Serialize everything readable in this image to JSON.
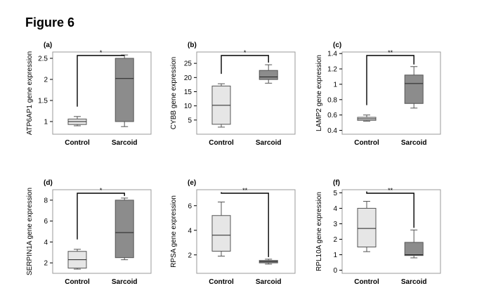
{
  "figure_title": "Figure 6",
  "colors": {
    "control_box": "#e6e6e6",
    "sarcoid_box": "#8c8c8c",
    "frame": "#999999"
  },
  "chart_data": [
    {
      "type": "box",
      "panel_label": "(a)",
      "ylabel": "ATP6AP1 gene expression",
      "categories": [
        "Control",
        "Sarcoid"
      ],
      "ylim": [
        0.7,
        2.65
      ],
      "yticks": [
        1.0,
        1.5,
        2.0,
        2.5
      ],
      "boxes": [
        {
          "min": 0.9,
          "q1": 0.93,
          "median": 1.0,
          "q3": 1.06,
          "max": 1.12
        },
        {
          "min": 0.88,
          "q1": 1.0,
          "median": 2.02,
          "q3": 2.5,
          "max": 2.58
        }
      ],
      "significance": "*"
    },
    {
      "type": "box",
      "panel_label": "(b)",
      "ylabel": "CYBB gene expression",
      "categories": [
        "Control",
        "Sarcoid"
      ],
      "ylim": [
        0,
        29
      ],
      "yticks": [
        5,
        10,
        15,
        20,
        25
      ],
      "boxes": [
        {
          "min": 2.5,
          "q1": 3.5,
          "median": 10.2,
          "q3": 17,
          "max": 17.8
        },
        {
          "min": 18,
          "q1": 19.3,
          "median": 20.2,
          "q3": 22.5,
          "max": 24.5
        }
      ],
      "significance": "*"
    },
    {
      "type": "box",
      "panel_label": "(c)",
      "ylabel": "LAMP2 gene expression",
      "categories": [
        "Control",
        "Sarcoid"
      ],
      "ylim": [
        0.35,
        1.42
      ],
      "yticks": [
        0.4,
        0.6,
        0.8,
        1.0,
        1.2,
        1.4
      ],
      "boxes": [
        {
          "min": 0.52,
          "q1": 0.53,
          "median": 0.55,
          "q3": 0.57,
          "max": 0.6
        },
        {
          "min": 0.69,
          "q1": 0.75,
          "median": 1.01,
          "q3": 1.12,
          "max": 1.23
        }
      ],
      "significance": "**"
    },
    {
      "type": "box",
      "panel_label": "(d)",
      "ylabel": "SERPIN1A gene expression",
      "categories": [
        "Control",
        "Sarcoid"
      ],
      "ylim": [
        1,
        9
      ],
      "yticks": [
        2,
        4,
        6,
        8
      ],
      "boxes": [
        {
          "min": 1.4,
          "q1": 1.5,
          "median": 2.3,
          "q3": 3.1,
          "max": 3.3
        },
        {
          "min": 2.3,
          "q1": 2.5,
          "median": 4.9,
          "q3": 8.0,
          "max": 8.2
        }
      ],
      "significance": "*"
    },
    {
      "type": "box",
      "panel_label": "(e)",
      "ylabel": "RPSA gene expression",
      "categories": [
        "Control",
        "Sarcoid"
      ],
      "ylim": [
        0.5,
        7.3
      ],
      "yticks": [
        2,
        4,
        6
      ],
      "boxes": [
        {
          "min": 1.9,
          "q1": 2.3,
          "median": 3.6,
          "q3": 5.2,
          "max": 6.3
        },
        {
          "min": 1.25,
          "q1": 1.35,
          "median": 1.45,
          "q3": 1.55,
          "max": 1.65
        }
      ],
      "significance": "**"
    },
    {
      "type": "box",
      "panel_label": "(f)",
      "ylabel": "RPL10A gene expression",
      "categories": [
        "Control",
        "Sarcoid"
      ],
      "ylim": [
        -0.2,
        5.2
      ],
      "yticks": [
        0,
        1,
        2,
        3,
        4,
        5
      ],
      "boxes": [
        {
          "min": 1.2,
          "q1": 1.5,
          "median": 2.7,
          "q3": 4.0,
          "max": 4.45
        },
        {
          "min": 0.8,
          "q1": 0.95,
          "median": 1.0,
          "q3": 1.8,
          "max": 2.6
        }
      ],
      "significance": "**"
    }
  ]
}
